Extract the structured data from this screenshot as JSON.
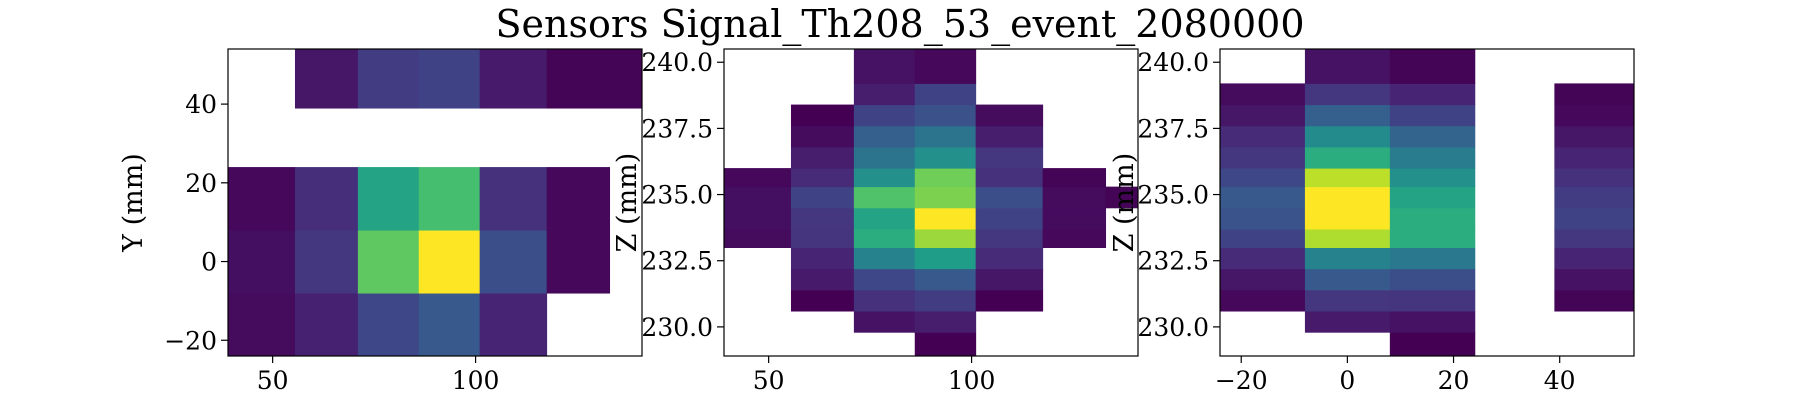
{
  "figure": {
    "title": "Sensors Signal_Th208_53_event_2080000"
  },
  "chart_data": [
    {
      "type": "heatmap",
      "title": "",
      "xlabel": "",
      "ylabel": "Y (mm)",
      "xlim": [
        39,
        141
      ],
      "ylim": [
        -24,
        54
      ],
      "xticks": [
        50,
        100
      ],
      "yticks": [
        -20,
        0,
        20,
        40
      ],
      "ytick_labels": [
        "−20",
        "0",
        "20",
        "40"
      ],
      "grid": false,
      "colormap": "viridis",
      "x_edges": [
        39,
        55.5,
        71,
        86,
        101,
        117.5,
        133,
        141
      ],
      "y_edges": [
        -24,
        -8,
        8,
        24,
        39,
        54
      ],
      "cells": [
        {
          "ix": 0,
          "iy": 0,
          "v": 0.03
        },
        {
          "ix": 1,
          "iy": 0,
          "v": 0.09
        },
        {
          "ix": 2,
          "iy": 0,
          "v": 0.22
        },
        {
          "ix": 3,
          "iy": 0,
          "v": 0.28
        },
        {
          "ix": 4,
          "iy": 0,
          "v": 0.1
        },
        {
          "ix": 0,
          "iy": 1,
          "v": 0.04
        },
        {
          "ix": 1,
          "iy": 1,
          "v": 0.16
        },
        {
          "ix": 2,
          "iy": 1,
          "v": 0.75
        },
        {
          "ix": 3,
          "iy": 1,
          "v": 1.0
        },
        {
          "ix": 4,
          "iy": 1,
          "v": 0.24
        },
        {
          "ix": 5,
          "iy": 1,
          "v": 0.02
        },
        {
          "ix": 0,
          "iy": 2,
          "v": 0.02
        },
        {
          "ix": 1,
          "iy": 2,
          "v": 0.13
        },
        {
          "ix": 2,
          "iy": 2,
          "v": 0.58
        },
        {
          "ix": 3,
          "iy": 2,
          "v": 0.7
        },
        {
          "ix": 4,
          "iy": 2,
          "v": 0.14
        },
        {
          "ix": 5,
          "iy": 2,
          "v": 0.02
        },
        {
          "ix": 1,
          "iy": 4,
          "v": 0.06
        },
        {
          "ix": 2,
          "iy": 4,
          "v": 0.18
        },
        {
          "ix": 3,
          "iy": 4,
          "v": 0.2
        },
        {
          "ix": 4,
          "iy": 4,
          "v": 0.07
        },
        {
          "ix": 5,
          "iy": 4,
          "v": 0.01
        },
        {
          "ix": 6,
          "iy": 4,
          "v": 0.01
        }
      ]
    },
    {
      "type": "heatmap",
      "title": "",
      "xlabel": "",
      "ylabel": "Z (mm)",
      "xlim": [
        39,
        141
      ],
      "ylim": [
        228.9,
        240.5
      ],
      "xticks": [
        50,
        100
      ],
      "yticks": [
        230.0,
        232.5,
        235.0,
        237.5,
        240.0
      ],
      "ytick_labels": [
        "230.0",
        "232.5",
        "235.0",
        "237.5",
        "240.0"
      ],
      "grid": false,
      "colormap": "viridis",
      "x_edges": [
        39,
        55.5,
        71,
        86,
        101,
        117.5,
        133,
        141
      ],
      "y_edges": [
        228.9,
        229.8,
        230.6,
        231.4,
        232.2,
        233.0,
        233.7,
        234.5,
        235.3,
        236.0,
        236.8,
        237.6,
        238.4,
        239.2,
        240.5
      ],
      "cells": [
        {
          "ix": 3,
          "iy": 0,
          "v": 0.0
        },
        {
          "ix": 2,
          "iy": 1,
          "v": 0.05
        },
        {
          "ix": 3,
          "iy": 1,
          "v": 0.08
        },
        {
          "ix": 1,
          "iy": 2,
          "v": 0.0
        },
        {
          "ix": 2,
          "iy": 2,
          "v": 0.14
        },
        {
          "ix": 3,
          "iy": 2,
          "v": 0.18
        },
        {
          "ix": 4,
          "iy": 2,
          "v": 0.0
        },
        {
          "ix": 1,
          "iy": 3,
          "v": 0.07
        },
        {
          "ix": 2,
          "iy": 3,
          "v": 0.22
        },
        {
          "ix": 3,
          "iy": 3,
          "v": 0.28
        },
        {
          "ix": 4,
          "iy": 3,
          "v": 0.06
        },
        {
          "ix": 1,
          "iy": 4,
          "v": 0.1
        },
        {
          "ix": 2,
          "iy": 4,
          "v": 0.45
        },
        {
          "ix": 3,
          "iy": 4,
          "v": 0.55
        },
        {
          "ix": 4,
          "iy": 4,
          "v": 0.12
        },
        {
          "ix": 0,
          "iy": 5,
          "v": 0.03
        },
        {
          "ix": 1,
          "iy": 5,
          "v": 0.15
        },
        {
          "ix": 2,
          "iy": 5,
          "v": 0.62
        },
        {
          "ix": 3,
          "iy": 5,
          "v": 0.85
        },
        {
          "ix": 4,
          "iy": 5,
          "v": 0.16
        },
        {
          "ix": 5,
          "iy": 5,
          "v": 0.02
        },
        {
          "ix": 0,
          "iy": 6,
          "v": 0.04
        },
        {
          "ix": 1,
          "iy": 6,
          "v": 0.16
        },
        {
          "ix": 2,
          "iy": 6,
          "v": 0.58
        },
        {
          "ix": 3,
          "iy": 6,
          "v": 1.0
        },
        {
          "ix": 4,
          "iy": 6,
          "v": 0.2
        },
        {
          "ix": 5,
          "iy": 6,
          "v": 0.03
        },
        {
          "ix": 0,
          "iy": 7,
          "v": 0.04
        },
        {
          "ix": 1,
          "iy": 7,
          "v": 0.2
        },
        {
          "ix": 2,
          "iy": 7,
          "v": 0.72
        },
        {
          "ix": 3,
          "iy": 7,
          "v": 0.8
        },
        {
          "ix": 4,
          "iy": 7,
          "v": 0.24
        },
        {
          "ix": 5,
          "iy": 7,
          "v": 0.03
        },
        {
          "ix": 6,
          "iy": 7,
          "v": 0.01
        },
        {
          "ix": 0,
          "iy": 8,
          "v": 0.02
        },
        {
          "ix": 1,
          "iy": 8,
          "v": 0.12
        },
        {
          "ix": 2,
          "iy": 8,
          "v": 0.5
        },
        {
          "ix": 3,
          "iy": 8,
          "v": 0.78
        },
        {
          "ix": 4,
          "iy": 8,
          "v": 0.14
        },
        {
          "ix": 5,
          "iy": 8,
          "v": 0.01
        },
        {
          "ix": 1,
          "iy": 9,
          "v": 0.08
        },
        {
          "ix": 2,
          "iy": 9,
          "v": 0.38
        },
        {
          "ix": 3,
          "iy": 9,
          "v": 0.5
        },
        {
          "ix": 4,
          "iy": 9,
          "v": 0.16
        },
        {
          "ix": 1,
          "iy": 10,
          "v": 0.03
        },
        {
          "ix": 2,
          "iy": 10,
          "v": 0.3
        },
        {
          "ix": 3,
          "iy": 10,
          "v": 0.38
        },
        {
          "ix": 4,
          "iy": 10,
          "v": 0.08
        },
        {
          "ix": 1,
          "iy": 11,
          "v": 0.0
        },
        {
          "ix": 2,
          "iy": 11,
          "v": 0.2
        },
        {
          "ix": 3,
          "iy": 11,
          "v": 0.25
        },
        {
          "ix": 4,
          "iy": 11,
          "v": 0.03
        },
        {
          "ix": 2,
          "iy": 12,
          "v": 0.08
        },
        {
          "ix": 3,
          "iy": 12,
          "v": 0.2
        },
        {
          "ix": 2,
          "iy": 13,
          "v": 0.05
        },
        {
          "ix": 3,
          "iy": 13,
          "v": 0.02
        }
      ]
    },
    {
      "type": "heatmap",
      "title": "",
      "xlabel": "",
      "ylabel": "Z (mm)",
      "xlim": [
        -24,
        54
      ],
      "ylim": [
        228.9,
        240.5
      ],
      "xticks": [
        -20,
        0,
        20,
        40
      ],
      "xtick_labels": [
        "−20",
        "0",
        "20",
        "40"
      ],
      "yticks": [
        230.0,
        232.5,
        235.0,
        237.5,
        240.0
      ],
      "ytick_labels": [
        "230.0",
        "232.5",
        "235.0",
        "237.5",
        "240.0"
      ],
      "grid": false,
      "colormap": "viridis",
      "x_edges": [
        -24,
        -8,
        8,
        24,
        39,
        54
      ],
      "y_edges": [
        228.9,
        229.8,
        230.6,
        231.4,
        232.2,
        233.0,
        233.7,
        234.5,
        235.3,
        236.0,
        236.8,
        237.6,
        238.4,
        239.2,
        240.5
      ],
      "cells": [
        {
          "ix": 2,
          "iy": 0,
          "v": 0.0
        },
        {
          "ix": 1,
          "iy": 1,
          "v": 0.07
        },
        {
          "ix": 2,
          "iy": 1,
          "v": 0.05
        },
        {
          "ix": 0,
          "iy": 2,
          "v": 0.02
        },
        {
          "ix": 1,
          "iy": 2,
          "v": 0.16
        },
        {
          "ix": 2,
          "iy": 2,
          "v": 0.15
        },
        {
          "ix": 4,
          "iy": 2,
          "v": 0.01
        },
        {
          "ix": 0,
          "iy": 3,
          "v": 0.06
        },
        {
          "ix": 1,
          "iy": 3,
          "v": 0.28
        },
        {
          "ix": 2,
          "iy": 3,
          "v": 0.24
        },
        {
          "ix": 4,
          "iy": 3,
          "v": 0.05
        },
        {
          "ix": 0,
          "iy": 4,
          "v": 0.12
        },
        {
          "ix": 1,
          "iy": 4,
          "v": 0.45
        },
        {
          "ix": 2,
          "iy": 4,
          "v": 0.4
        },
        {
          "ix": 4,
          "iy": 4,
          "v": 0.1
        },
        {
          "ix": 0,
          "iy": 5,
          "v": 0.2
        },
        {
          "ix": 1,
          "iy": 5,
          "v": 0.88
        },
        {
          "ix": 2,
          "iy": 5,
          "v": 0.62
        },
        {
          "ix": 4,
          "iy": 5,
          "v": 0.16
        },
        {
          "ix": 0,
          "iy": 6,
          "v": 0.26
        },
        {
          "ix": 1,
          "iy": 6,
          "v": 1.0
        },
        {
          "ix": 2,
          "iy": 6,
          "v": 0.62
        },
        {
          "ix": 4,
          "iy": 6,
          "v": 0.2
        },
        {
          "ix": 0,
          "iy": 7,
          "v": 0.28
        },
        {
          "ix": 1,
          "iy": 7,
          "v": 1.0
        },
        {
          "ix": 2,
          "iy": 7,
          "v": 0.58
        },
        {
          "ix": 4,
          "iy": 7,
          "v": 0.18
        },
        {
          "ix": 0,
          "iy": 8,
          "v": 0.22
        },
        {
          "ix": 1,
          "iy": 8,
          "v": 0.9
        },
        {
          "ix": 2,
          "iy": 8,
          "v": 0.5
        },
        {
          "ix": 4,
          "iy": 8,
          "v": 0.14
        },
        {
          "ix": 0,
          "iy": 9,
          "v": 0.16
        },
        {
          "ix": 1,
          "iy": 9,
          "v": 0.62
        },
        {
          "ix": 2,
          "iy": 9,
          "v": 0.42
        },
        {
          "ix": 4,
          "iy": 9,
          "v": 0.1
        },
        {
          "ix": 0,
          "iy": 10,
          "v": 0.12
        },
        {
          "ix": 1,
          "iy": 10,
          "v": 0.48
        },
        {
          "ix": 2,
          "iy": 10,
          "v": 0.32
        },
        {
          "ix": 4,
          "iy": 10,
          "v": 0.06
        },
        {
          "ix": 0,
          "iy": 11,
          "v": 0.06
        },
        {
          "ix": 1,
          "iy": 11,
          "v": 0.3
        },
        {
          "ix": 2,
          "iy": 11,
          "v": 0.2
        },
        {
          "ix": 4,
          "iy": 11,
          "v": 0.02
        },
        {
          "ix": 0,
          "iy": 12,
          "v": 0.03
        },
        {
          "ix": 1,
          "iy": 12,
          "v": 0.16
        },
        {
          "ix": 2,
          "iy": 12,
          "v": 0.1
        },
        {
          "ix": 4,
          "iy": 12,
          "v": 0.01
        },
        {
          "ix": 1,
          "iy": 13,
          "v": 0.05
        },
        {
          "ix": 2,
          "iy": 13,
          "v": 0.01
        }
      ]
    }
  ],
  "viridis_stops": [
    "#440154",
    "#482878",
    "#3e4989",
    "#31688e",
    "#26828e",
    "#1f9e89",
    "#35b779",
    "#6ece58",
    "#b5de2b",
    "#fde725"
  ]
}
